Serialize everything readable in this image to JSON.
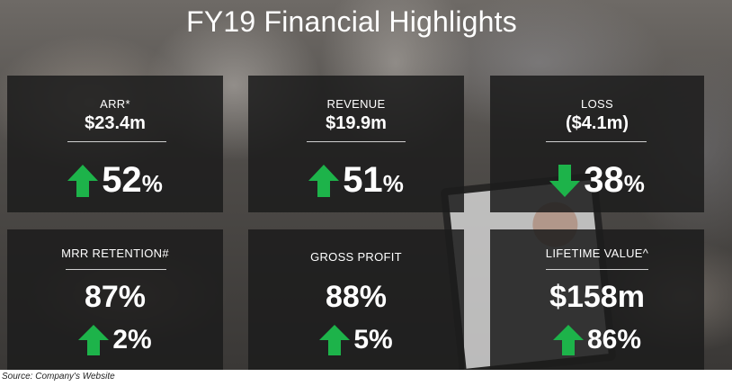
{
  "title": "FY19 Financial Highlights",
  "colors": {
    "up_arrow": "#1db34a",
    "down_arrow": "#1db34a",
    "card_bg": "#1c1c1c",
    "text": "#ffffff"
  },
  "cards": [
    {
      "label": "ARR*",
      "amount": "$23.4m",
      "change_direction": "up",
      "change_icon": "arrow-up-icon",
      "change_number": "52",
      "change_unit": "%"
    },
    {
      "label": "REVENUE",
      "amount": "$19.9m",
      "change_direction": "up",
      "change_icon": "arrow-up-icon",
      "change_number": "51",
      "change_unit": "%"
    },
    {
      "label": "LOSS",
      "amount": "($4.1m)",
      "change_direction": "down",
      "change_icon": "arrow-down-icon",
      "change_number": "38",
      "change_unit": "%"
    },
    {
      "label": "MRR RETENTION#",
      "value": "87%",
      "change_direction": "up",
      "change_icon": "arrow-up-icon",
      "change": "2%"
    },
    {
      "label": "GROSS PROFIT",
      "value": "88%",
      "change_direction": "up",
      "change_icon": "arrow-up-icon",
      "change": "5%"
    },
    {
      "label": "LIFETIME VALUE^",
      "value": "$158m",
      "change_direction": "up",
      "change_icon": "arrow-up-icon",
      "change": "86%"
    }
  ],
  "source": "Source: Company's Website"
}
